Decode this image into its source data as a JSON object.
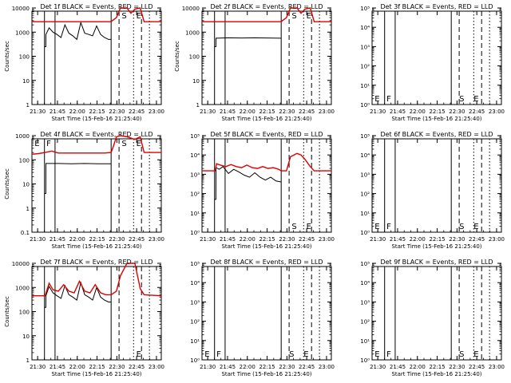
{
  "colors": {
    "events": "#000000",
    "lld": "#dd0000",
    "axis": "#000000"
  },
  "common": {
    "xlabel": "Start Time (15-Feb-16 21:25:40)",
    "x_tick_labels": [
      "21:30",
      "21:45",
      "22:00",
      "22:15",
      "22:30",
      "22:45",
      "23:00"
    ],
    "x_tick_minutes": [
      4.33,
      19.33,
      34.33,
      49.33,
      64.33,
      79.33,
      94.33
    ],
    "x_range_minutes": [
      0,
      98
    ],
    "event_lines": [
      {
        "minute": 9.5,
        "style": "solid"
      },
      {
        "minute": 17.5,
        "style": "solid"
      },
      {
        "minute": 60.0,
        "style": "solid"
      },
      {
        "minute": 66.0,
        "style": "dashed"
      },
      {
        "minute": 77.0,
        "style": "dotted"
      },
      {
        "minute": 83.0,
        "style": "dashed"
      },
      {
        "minute": 89.0,
        "style": "dotted"
      }
    ]
  },
  "chart_data": [
    {
      "type": "line",
      "title": "Det 1f BLACK = Events, RED = LLD",
      "ylabel": "Counts/sec",
      "y_scale": "log",
      "ylim": [
        1,
        10000
      ],
      "y_tick_labels": [
        "1",
        "10",
        "100",
        "1000",
        "10000"
      ],
      "markers": [
        {
          "text": "S",
          "minute": 68
        },
        {
          "text": "E",
          "minute": 79
        }
      ],
      "series": [
        {
          "color_key": "events",
          "x": [
            9.5,
            10.5,
            10.6,
            13,
            16,
            19,
            22,
            25,
            28,
            31,
            34,
            37,
            40,
            43,
            46,
            49,
            52,
            55,
            58,
            59.8,
            60
          ],
          "y": [
            250,
            250,
            800,
            1500,
            1000,
            800,
            600,
            2000,
            900,
            700,
            500,
            2500,
            900,
            800,
            700,
            1800,
            800,
            600,
            500,
            500,
            500
          ]
        },
        {
          "color_key": "lld",
          "x": [
            0,
            60,
            61,
            64,
            67,
            72,
            75,
            78,
            82,
            85,
            98
          ],
          "y": [
            2700,
            2700,
            3000,
            4000,
            13000,
            10000,
            6000,
            9000,
            10000,
            2700,
            2700
          ]
        }
      ]
    },
    {
      "type": "line",
      "title": "Det 2f BLACK = Events, RED = LLD",
      "ylabel": "Counts/sec",
      "y_scale": "log",
      "ylim": [
        1,
        10000
      ],
      "y_tick_labels": [
        "1",
        "10",
        "100",
        "1000",
        "10000"
      ],
      "markers": [
        {
          "text": "S",
          "minute": 68
        },
        {
          "text": "E",
          "minute": 79
        }
      ],
      "series": [
        {
          "color_key": "events",
          "x": [
            9.5,
            10.5,
            10.6,
            20,
            30,
            40,
            50,
            59.8,
            60
          ],
          "y": [
            250,
            250,
            560,
            580,
            570,
            580,
            570,
            560,
            560
          ]
        },
        {
          "color_key": "lld",
          "x": [
            0,
            60,
            61,
            64,
            67,
            72,
            75,
            78,
            82,
            85,
            98
          ],
          "y": [
            2700,
            2700,
            3000,
            4000,
            13000,
            10000,
            6000,
            9000,
            10000,
            2700,
            2700
          ]
        }
      ]
    },
    {
      "type": "line",
      "title": "Det 3f BLACK = Events, RED = LLD",
      "ylabel": "",
      "y_scale": "log",
      "ylim": [
        1,
        100000
      ],
      "y_tick_labels": [
        "10⁰",
        "10¹",
        "10²",
        "10³",
        "10⁴",
        "10⁵"
      ],
      "markers": [
        {
          "text": "E",
          "minute": 2
        },
        {
          "text": "F",
          "minute": 11
        },
        {
          "text": "S",
          "minute": 66
        },
        {
          "text": "E",
          "minute": 77
        }
      ],
      "series": []
    },
    {
      "type": "line",
      "title": "Det 4f BLACK = Events, RED = LLD",
      "ylabel": "Counts/sec",
      "y_scale": "log",
      "ylim": [
        0.1,
        1000
      ],
      "y_tick_labels": [
        "0.1",
        "1",
        "10",
        "100",
        "1000"
      ],
      "markers": [
        {
          "text": "E",
          "minute": 2
        },
        {
          "text": "F",
          "minute": 11
        },
        {
          "text": "S",
          "minute": 68
        },
        {
          "text": "E",
          "minute": 79
        }
      ],
      "series": [
        {
          "color_key": "events",
          "x": [
            9.5,
            10.5,
            10.6,
            20,
            30,
            40,
            50,
            59.8,
            60
          ],
          "y": [
            4,
            4,
            70,
            70,
            68,
            70,
            68,
            68,
            68
          ]
        },
        {
          "color_key": "lld",
          "x": [
            0,
            5,
            10,
            15,
            20,
            40,
            55,
            60,
            62,
            64,
            67,
            72,
            78,
            82,
            85,
            98
          ],
          "y": [
            170,
            180,
            200,
            230,
            190,
            190,
            190,
            200,
            400,
            900,
            1100,
            900,
            700,
            900,
            200,
            200
          ]
        }
      ]
    },
    {
      "type": "line",
      "title": "Det 5f BLACK = Events, RED = LLD",
      "ylabel": "",
      "y_scale": "log",
      "ylim": [
        1,
        100000
      ],
      "y_tick_labels": [
        "10⁰",
        "10¹",
        "10²",
        "10³",
        "10⁴",
        "10⁵"
      ],
      "markers": [
        {
          "text": "S",
          "minute": 68
        },
        {
          "text": "E",
          "minute": 79
        }
      ],
      "series": [
        {
          "color_key": "events",
          "x": [
            9.5,
            10.5,
            10.6,
            13,
            16,
            20,
            24,
            28,
            32,
            36,
            40,
            44,
            48,
            52,
            56,
            59.8,
            60
          ],
          "y": [
            50,
            50,
            2200,
            1800,
            2500,
            1100,
            1800,
            1300,
            900,
            700,
            1200,
            700,
            500,
            700,
            450,
            400,
            400
          ]
        },
        {
          "color_key": "lld",
          "x": [
            0,
            10,
            11,
            14,
            18,
            22,
            26,
            30,
            34,
            38,
            42,
            46,
            50,
            54,
            58,
            60,
            64,
            67,
            72,
            75,
            78,
            82,
            85,
            98
          ],
          "y": [
            1500,
            1500,
            3500,
            3000,
            2500,
            3200,
            2500,
            2200,
            3000,
            2200,
            2000,
            2500,
            2000,
            2200,
            1800,
            1500,
            1500,
            8000,
            12000,
            10000,
            6000,
            2500,
            1500,
            1500
          ]
        }
      ]
    },
    {
      "type": "line",
      "title": "Det 6f BLACK = Events, RED = LLD",
      "ylabel": "",
      "y_scale": "log",
      "ylim": [
        1,
        100000
      ],
      "y_tick_labels": [
        "10⁰",
        "10¹",
        "10²",
        "10³",
        "10⁴",
        "10⁵"
      ],
      "markers": [
        {
          "text": "E",
          "minute": 2
        },
        {
          "text": "F",
          "minute": 11
        },
        {
          "text": "S",
          "minute": 66
        },
        {
          "text": "E",
          "minute": 77
        }
      ],
      "series": []
    },
    {
      "type": "line",
      "title": "Det 7f BLACK = Events, RED = LLD",
      "ylabel": "Counts/sec",
      "y_scale": "log",
      "ylim": [
        1,
        10000
      ],
      "y_tick_labels": [
        "1",
        "10",
        "100",
        "1000",
        "10000"
      ],
      "markers": [
        {
          "text": "E",
          "minute": 79
        }
      ],
      "series": [
        {
          "color_key": "events",
          "x": [
            9.5,
            10.5,
            10.6,
            13,
            16,
            19,
            22,
            25,
            28,
            31,
            34,
            37,
            40,
            43,
            46,
            49,
            52,
            55,
            58,
            59.8,
            60
          ],
          "y": [
            150,
            150,
            450,
            1100,
            600,
            450,
            350,
            1200,
            500,
            400,
            300,
            1600,
            500,
            400,
            300,
            1000,
            400,
            300,
            250,
            250,
            250
          ]
        },
        {
          "color_key": "lld",
          "x": [
            0,
            10,
            13,
            16,
            20,
            24,
            28,
            32,
            36,
            40,
            44,
            48,
            52,
            56,
            60,
            64,
            67,
            72,
            75,
            78,
            82,
            85,
            98
          ],
          "y": [
            450,
            450,
            1500,
            800,
            700,
            1300,
            700,
            600,
            1800,
            700,
            600,
            1300,
            600,
            500,
            500,
            700,
            3000,
            12000,
            15000,
            12000,
            900,
            500,
            450
          ]
        }
      ]
    },
    {
      "type": "line",
      "title": "Det 8f BLACK = Events, RED = LLD",
      "ylabel": "",
      "y_scale": "log",
      "ylim": [
        1,
        100000
      ],
      "y_tick_labels": [
        "10⁰",
        "10¹",
        "10²",
        "10³",
        "10⁴",
        "10⁵"
      ],
      "markers": [
        {
          "text": "E",
          "minute": 2
        },
        {
          "text": "F",
          "minute": 11
        },
        {
          "text": "S",
          "minute": 66
        },
        {
          "text": "E",
          "minute": 77
        }
      ],
      "series": []
    },
    {
      "type": "line",
      "title": "Det 9f BLACK = Events, RED = LLD",
      "ylabel": "",
      "y_scale": "log",
      "ylim": [
        1,
        100000
      ],
      "y_tick_labels": [
        "10⁰",
        "10¹",
        "10²",
        "10³",
        "10⁴",
        "10⁵"
      ],
      "markers": [
        {
          "text": "E",
          "minute": 2
        },
        {
          "text": "F",
          "minute": 11
        },
        {
          "text": "S",
          "minute": 66
        },
        {
          "text": "E",
          "minute": 77
        }
      ],
      "series": []
    }
  ]
}
